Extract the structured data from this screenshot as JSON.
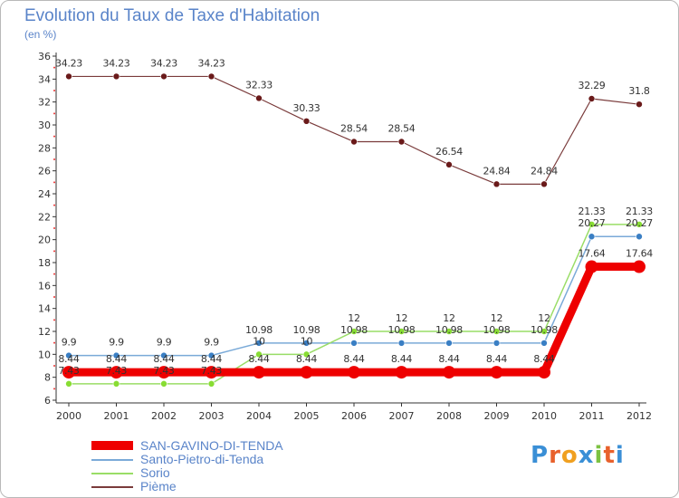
{
  "title": "Evolution du Taux de Taxe d'Habitation",
  "subtitle": "(en %)",
  "brand": "Proxiti",
  "chart_data": {
    "type": "line",
    "x": [
      "2000",
      "2001",
      "2002",
      "2003",
      "2004",
      "2005",
      "2006",
      "2007",
      "2008",
      "2009",
      "2010",
      "2011",
      "2012"
    ],
    "ylim": [
      6,
      36
    ],
    "yticks": [
      6,
      8,
      10,
      12,
      14,
      16,
      18,
      20,
      22,
      24,
      26,
      28,
      30,
      32,
      34,
      36
    ],
    "grid": false,
    "legend_position": "bottom-left",
    "series": [
      {
        "name": "SAN-GAVINO-DI-TENDA",
        "color": "#ee0000",
        "values": [
          8.44,
          8.44,
          8.44,
          8.44,
          8.44,
          8.44,
          8.44,
          8.44,
          8.44,
          8.44,
          8.44,
          17.64,
          17.64
        ],
        "labels": [
          "8.44",
          "8.44",
          "8.44",
          "8.44",
          "8.44",
          "8.44",
          "8.44",
          "8.44",
          "8.44",
          "8.44",
          "8.44",
          "17.64",
          "17.64"
        ]
      },
      {
        "name": "Santo-Pietro-di-Tenda",
        "color": "#7aaad8",
        "values": [
          9.9,
          9.9,
          9.9,
          9.9,
          10.98,
          10.98,
          10.98,
          10.98,
          10.98,
          10.98,
          10.98,
          20.27,
          20.27
        ],
        "labels": [
          "9.9",
          "9.9",
          "9.9",
          "9.9",
          "10.98",
          "10.98",
          "10.98",
          "10.98",
          "10.98",
          "10.98",
          "10.98",
          "20.27",
          "20.27"
        ]
      },
      {
        "name": "Sorio",
        "color": "#99dd66",
        "values": [
          7.43,
          7.43,
          7.43,
          7.43,
          10,
          10,
          12,
          12,
          12,
          12,
          12,
          21.33,
          21.33
        ],
        "labels": [
          "7.43",
          "7.43",
          "7.43",
          "7.43",
          "10",
          "10",
          "12",
          "12",
          "12",
          "12",
          "12",
          "21.33",
          "21.33"
        ]
      },
      {
        "name": "Pième",
        "color": "#7a3b3b",
        "values": [
          34.23,
          34.23,
          34.23,
          34.23,
          32.33,
          30.33,
          28.54,
          28.54,
          26.54,
          24.84,
          24.84,
          32.29,
          31.8
        ],
        "labels": [
          "34.23",
          "34.23",
          "34.23",
          "34.23",
          "32.33",
          "30.33",
          "28.54",
          "28.54",
          "26.54",
          "24.84",
          "24.84",
          "32.29",
          "31.8"
        ]
      }
    ]
  },
  "legend": [
    {
      "label": "SAN-GAVINO-DI-TENDA",
      "color": "#ee0000"
    },
    {
      "label": "Santo-Pietro-di-Tenda",
      "color": "#7aaad8"
    },
    {
      "label": "Sorio",
      "color": "#99dd66"
    },
    {
      "label": "Pième",
      "color": "#7a3b3b"
    }
  ]
}
